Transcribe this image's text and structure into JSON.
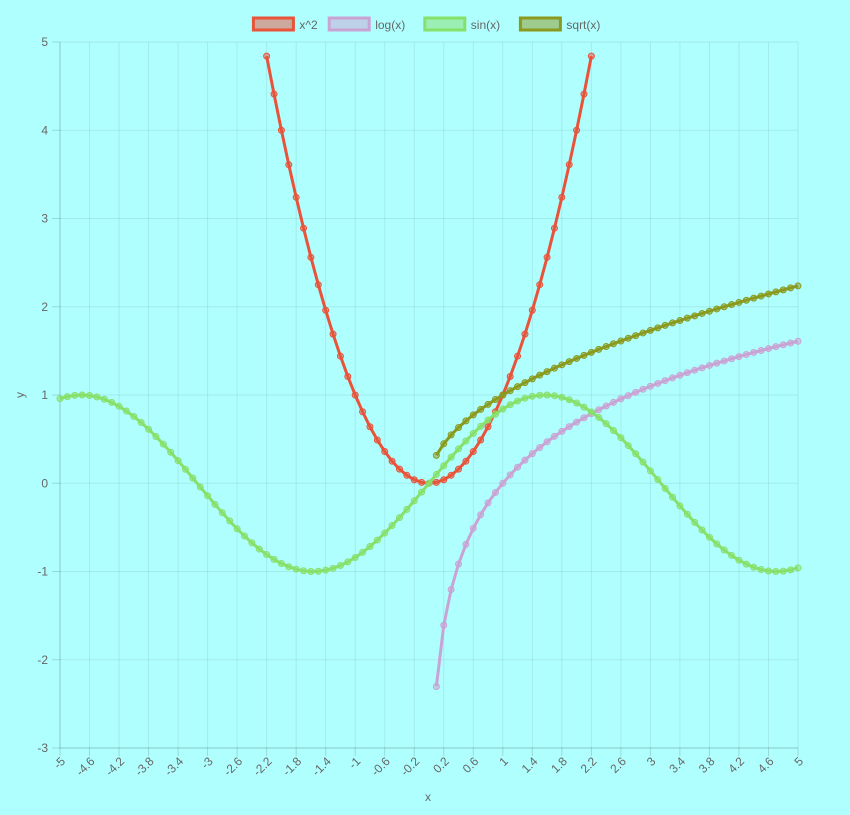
{
  "chart_data": {
    "type": "line",
    "xlabel": "x",
    "ylabel": "y",
    "xlim": [
      -5,
      5
    ],
    "ylim": [
      -3,
      5
    ],
    "x_ticks": [
      "-5",
      "-4.6",
      "-4.2",
      "-3.8",
      "-3.4",
      "-3",
      "-2.6",
      "-2.2",
      "-1.8",
      "-1.4",
      "-1",
      "-0.6",
      "-0.2",
      "0.2",
      "0.6",
      "1",
      "1.4",
      "1.8",
      "2.2",
      "2.6",
      "3",
      "3.4",
      "3.8",
      "4.2",
      "4.6",
      "5"
    ],
    "y_ticks": [
      "5",
      "4",
      "3",
      "2",
      "1",
      "0",
      "-1",
      "-2",
      "-3"
    ],
    "grid": true,
    "legend_position": "top-center",
    "series": [
      {
        "name": "x^2",
        "color": "#e8533a",
        "x": [
          -2.2,
          -2.1,
          -2,
          -1.9,
          -1.8,
          -1.7,
          -1.6,
          -1.5,
          -1.4,
          -1.3,
          -1.2,
          -1.1,
          -1,
          -0.9,
          -0.8,
          -0.7,
          -0.6,
          -0.5,
          -0.4,
          -0.3,
          -0.2,
          -0.1,
          0,
          0.1,
          0.2,
          0.3,
          0.4,
          0.5,
          0.6,
          0.7,
          0.8,
          0.9,
          1,
          1.1,
          1.2,
          1.3,
          1.4,
          1.5,
          1.6,
          1.7,
          1.8,
          1.9,
          2,
          2.1,
          2.2
        ],
        "values": [
          4.84,
          4.41,
          4,
          3.61,
          3.24,
          2.89,
          2.56,
          2.25,
          1.96,
          1.69,
          1.44,
          1.21,
          1,
          0.81,
          0.64,
          0.49,
          0.36,
          0.25,
          0.16,
          0.09,
          0.04,
          0.01,
          0,
          0.01,
          0.04,
          0.09,
          0.16,
          0.25,
          0.36,
          0.49,
          0.64,
          0.81,
          1,
          1.21,
          1.44,
          1.69,
          1.96,
          2.25,
          2.56,
          2.89,
          3.24,
          3.61,
          4,
          4.41,
          4.84
        ]
      },
      {
        "name": "log(x)",
        "color": "#c9a3d4",
        "x": [
          0.1,
          0.2,
          0.3,
          0.4,
          0.5,
          0.6,
          0.7,
          0.8,
          0.9,
          1,
          1.1,
          1.2,
          1.3,
          1.4,
          1.5,
          1.6,
          1.7,
          1.8,
          1.9,
          2,
          2.1,
          2.2,
          2.3,
          2.4,
          2.5,
          2.6,
          2.7,
          2.8,
          2.9,
          3,
          3.1,
          3.2,
          3.3,
          3.4,
          3.5,
          3.6,
          3.7,
          3.8,
          3.9,
          4,
          4.1,
          4.2,
          4.3,
          4.4,
          4.5,
          4.6,
          4.7,
          4.8,
          4.9,
          5
        ],
        "values": [
          -2.303,
          -1.609,
          -1.204,
          -0.916,
          -0.693,
          -0.511,
          -0.357,
          -0.223,
          -0.105,
          0,
          0.095,
          0.182,
          0.262,
          0.336,
          0.405,
          0.47,
          0.531,
          0.588,
          0.642,
          0.693,
          0.742,
          0.788,
          0.833,
          0.875,
          0.916,
          0.956,
          0.993,
          1.03,
          1.065,
          1.099,
          1.131,
          1.163,
          1.194,
          1.224,
          1.253,
          1.281,
          1.308,
          1.335,
          1.361,
          1.386,
          1.411,
          1.435,
          1.459,
          1.482,
          1.504,
          1.526,
          1.548,
          1.569,
          1.589,
          1.609
        ]
      },
      {
        "name": "sin(x)",
        "color": "#86e06a",
        "x": [
          -5,
          -4.9,
          -4.8,
          -4.7,
          -4.6,
          -4.5,
          -4.4,
          -4.3,
          -4.2,
          -4.1,
          -4,
          -3.9,
          -3.8,
          -3.7,
          -3.6,
          -3.5,
          -3.4,
          -3.3,
          -3.2,
          -3.1,
          -3,
          -2.9,
          -2.8,
          -2.7,
          -2.6,
          -2.5,
          -2.4,
          -2.3,
          -2.2,
          -2.1,
          -2,
          -1.9,
          -1.8,
          -1.7,
          -1.6,
          -1.5,
          -1.4,
          -1.3,
          -1.2,
          -1.1,
          -1,
          -0.9,
          -0.8,
          -0.7,
          -0.6,
          -0.5,
          -0.4,
          -0.3,
          -0.2,
          -0.1,
          0,
          0.1,
          0.2,
          0.3,
          0.4,
          0.5,
          0.6,
          0.7,
          0.8,
          0.9,
          1,
          1.1,
          1.2,
          1.3,
          1.4,
          1.5,
          1.6,
          1.7,
          1.8,
          1.9,
          2,
          2.1,
          2.2,
          2.3,
          2.4,
          2.5,
          2.6,
          2.7,
          2.8,
          2.9,
          3,
          3.1,
          3.2,
          3.3,
          3.4,
          3.5,
          3.6,
          3.7,
          3.8,
          3.9,
          4,
          4.1,
          4.2,
          4.3,
          4.4,
          4.5,
          4.6,
          4.7,
          4.8,
          4.9,
          5
        ],
        "values": [
          0.959,
          0.982,
          0.996,
          1,
          0.994,
          0.978,
          0.952,
          0.916,
          0.872,
          0.818,
          0.757,
          0.688,
          0.612,
          0.53,
          0.443,
          0.351,
          0.256,
          0.158,
          0.058,
          -0.042,
          -0.141,
          -0.239,
          -0.335,
          -0.427,
          -0.516,
          -0.598,
          -0.675,
          -0.746,
          -0.808,
          -0.863,
          -0.909,
          -0.946,
          -0.974,
          -0.992,
          -1,
          -0.997,
          -0.985,
          -0.964,
          -0.932,
          -0.891,
          -0.841,
          -0.783,
          -0.717,
          -0.644,
          -0.565,
          -0.479,
          -0.389,
          -0.296,
          -0.199,
          -0.1,
          0,
          0.1,
          0.199,
          0.296,
          0.389,
          0.479,
          0.565,
          0.644,
          0.717,
          0.783,
          0.841,
          0.891,
          0.932,
          0.964,
          0.985,
          0.997,
          1,
          0.992,
          0.974,
          0.946,
          0.909,
          0.863,
          0.808,
          0.746,
          0.675,
          0.598,
          0.516,
          0.427,
          0.335,
          0.239,
          0.141,
          0.042,
          -0.058,
          -0.158,
          -0.256,
          -0.351,
          -0.443,
          -0.53,
          -0.612,
          -0.688,
          -0.757,
          -0.818,
          -0.872,
          -0.916,
          -0.952,
          -0.978,
          -0.994,
          -1,
          -0.996,
          -0.982,
          -0.959
        ]
      },
      {
        "name": "sqrt(x)",
        "color": "#8a9a1e",
        "x": [
          0.1,
          0.2,
          0.3,
          0.4,
          0.5,
          0.6,
          0.7,
          0.8,
          0.9,
          1,
          1.1,
          1.2,
          1.3,
          1.4,
          1.5,
          1.6,
          1.7,
          1.8,
          1.9,
          2,
          2.1,
          2.2,
          2.3,
          2.4,
          2.5,
          2.6,
          2.7,
          2.8,
          2.9,
          3,
          3.1,
          3.2,
          3.3,
          3.4,
          3.5,
          3.6,
          3.7,
          3.8,
          3.9,
          4,
          4.1,
          4.2,
          4.3,
          4.4,
          4.5,
          4.6,
          4.7,
          4.8,
          4.9,
          5
        ],
        "values": [
          0.316,
          0.447,
          0.548,
          0.632,
          0.707,
          0.775,
          0.837,
          0.894,
          0.949,
          1,
          1.049,
          1.095,
          1.14,
          1.183,
          1.225,
          1.265,
          1.304,
          1.342,
          1.378,
          1.414,
          1.449,
          1.483,
          1.517,
          1.549,
          1.581,
          1.612,
          1.643,
          1.673,
          1.703,
          1.732,
          1.761,
          1.789,
          1.817,
          1.844,
          1.871,
          1.897,
          1.924,
          1.949,
          1.975,
          2,
          2.025,
          2.049,
          2.074,
          2.098,
          2.121,
          2.145,
          2.168,
          2.191,
          2.214,
          2.236
        ]
      }
    ]
  }
}
